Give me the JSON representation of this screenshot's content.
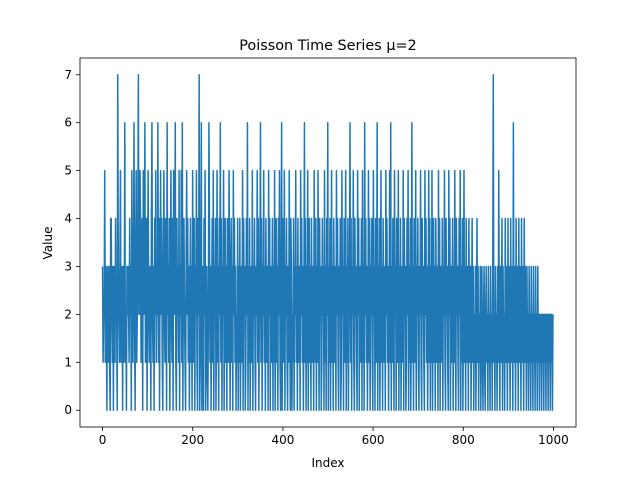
{
  "chart_data": {
    "type": "line",
    "title": "Poisson Time Series   μ=2",
    "xlabel": "Index",
    "ylabel": "Value",
    "xlim": [
      -50,
      1050
    ],
    "ylim": [
      -0.35,
      7.35
    ],
    "x_ticks": [
      0,
      200,
      400,
      600,
      800,
      1000
    ],
    "x_tick_labels": [
      "0",
      "200",
      "400",
      "600",
      "800",
      "1000"
    ],
    "y_ticks": [
      0,
      1,
      2,
      3,
      4,
      5,
      6,
      7
    ],
    "y_tick_labels": [
      "0",
      "1",
      "2",
      "3",
      "4",
      "5",
      "6",
      "7"
    ],
    "grid": false,
    "line_color": "#1f77b4",
    "series": [
      {
        "n_points": 1000,
        "x_start": 0,
        "x_end": 999,
        "values": [
          3,
          1,
          2,
          2,
          5,
          1,
          3,
          2,
          0,
          3,
          2,
          1,
          3,
          1,
          0,
          4,
          4,
          2,
          1,
          3,
          0,
          3,
          2,
          1,
          4,
          2,
          2,
          0,
          7,
          3,
          2,
          1,
          3,
          5,
          1,
          2,
          3,
          0,
          3,
          1,
          2,
          6,
          1,
          2,
          0,
          3,
          2,
          3,
          2,
          1,
          4,
          2,
          3,
          0,
          5,
          2,
          1,
          3,
          6,
          2,
          0,
          3,
          5,
          1,
          2,
          4,
          7,
          2,
          2,
          5,
          4,
          1,
          3,
          4,
          0,
          5,
          2,
          3,
          6,
          1,
          2,
          4,
          0,
          3,
          5,
          2,
          1,
          3,
          2,
          0,
          4,
          6,
          2,
          1,
          3,
          0,
          4,
          2,
          5,
          1,
          3,
          2,
          6,
          1,
          4,
          0,
          3,
          5,
          2,
          4,
          1,
          0,
          3,
          5,
          2,
          1,
          4,
          3,
          0,
          6,
          2,
          3,
          1,
          4,
          0,
          3,
          5,
          2,
          1,
          4,
          0,
          5,
          2,
          3,
          6,
          1,
          0,
          4,
          2,
          3,
          1,
          5,
          0,
          3,
          2,
          5,
          1,
          6,
          0,
          3,
          4,
          2,
          1,
          0,
          3,
          5,
          2,
          4,
          1,
          3,
          0,
          2,
          4,
          1,
          3,
          0,
          5,
          2,
          1,
          4,
          0,
          3,
          2,
          5,
          1,
          0,
          4,
          2,
          7,
          0,
          1,
          3,
          6,
          0,
          2,
          3,
          0,
          4,
          2,
          5,
          0,
          1,
          3,
          1,
          0,
          2,
          6,
          4,
          1,
          3,
          0,
          2,
          4,
          1,
          5,
          0,
          3,
          2,
          4,
          0,
          2,
          5,
          1,
          3,
          0,
          4,
          2,
          6,
          1,
          4,
          0,
          3,
          2,
          5,
          0,
          2,
          4,
          1,
          3,
          0,
          4,
          2,
          1,
          5,
          3,
          0,
          2,
          4,
          1,
          3,
          0,
          5,
          2,
          4,
          1,
          3,
          0,
          2,
          1,
          4,
          0,
          3,
          1,
          4,
          0,
          2,
          3,
          1,
          5,
          0,
          4,
          2,
          3,
          0,
          1,
          4,
          2,
          6,
          0,
          3,
          1,
          4,
          0,
          2,
          3,
          1,
          5,
          0,
          3,
          2,
          4,
          1,
          0,
          3,
          2,
          5,
          1,
          4,
          0,
          2,
          3,
          6,
          1,
          4,
          0,
          3,
          2,
          5,
          1,
          3,
          0,
          4,
          2,
          1,
          3,
          0,
          5,
          2,
          4,
          0,
          3,
          1,
          2,
          4,
          0,
          3,
          1,
          5,
          0,
          2,
          4,
          1,
          3,
          0,
          4,
          2,
          5,
          1,
          0,
          3,
          6,
          0,
          4,
          2,
          1,
          5,
          0,
          3,
          2,
          4,
          1,
          0,
          3,
          1,
          5,
          2,
          0,
          4,
          3,
          0,
          2,
          1,
          4,
          0,
          3,
          2,
          5,
          1,
          3,
          0,
          4,
          1,
          2,
          3,
          0,
          5,
          2,
          4,
          1,
          3,
          0,
          2,
          6,
          1,
          4,
          0,
          3,
          1,
          5,
          0,
          2,
          4,
          1,
          3,
          0,
          4,
          2,
          1,
          3,
          0,
          5,
          2,
          1,
          4,
          0,
          3,
          1,
          5,
          2,
          0,
          4,
          2,
          3,
          0,
          1,
          4,
          2,
          3,
          0,
          5,
          1,
          3,
          0,
          4,
          2,
          6,
          0,
          3,
          1,
          4,
          0,
          2,
          5,
          1,
          3,
          0,
          4,
          2,
          1,
          3,
          0,
          5,
          2,
          4,
          1,
          0,
          3,
          2,
          4,
          0,
          1,
          5,
          2,
          3,
          0,
          4,
          1,
          2,
          5,
          0,
          3,
          1,
          4,
          0,
          2,
          3,
          6,
          1,
          4,
          0,
          3,
          2,
          5,
          1,
          0,
          4,
          2,
          3,
          1,
          0,
          5,
          2,
          4,
          0,
          3,
          1,
          2,
          4,
          0,
          5,
          1,
          3,
          0,
          6,
          2,
          4,
          1,
          3,
          0,
          2,
          5,
          1,
          4,
          0,
          3,
          2,
          4,
          1,
          0,
          5,
          2,
          3,
          0,
          4,
          1,
          2,
          6,
          0,
          3,
          1,
          4,
          0,
          2,
          5,
          1,
          3,
          0,
          4,
          2,
          1,
          3,
          0,
          5,
          2,
          4,
          1,
          3,
          0,
          2,
          5,
          1,
          6,
          0,
          3,
          1,
          4,
          2,
          0,
          5,
          2,
          3,
          0,
          4,
          1,
          2,
          5,
          0,
          3,
          1,
          4,
          0,
          2,
          3,
          1,
          5,
          0,
          4,
          2,
          3,
          0,
          1,
          4,
          2,
          5,
          0,
          3,
          1,
          4,
          0,
          2,
          6,
          1,
          3,
          0,
          4,
          2,
          1,
          5,
          0,
          3,
          2,
          4,
          1,
          0,
          3,
          2,
          5,
          1,
          0,
          4,
          2,
          3,
          1,
          0,
          5,
          2,
          4,
          1,
          3,
          0,
          2,
          5,
          1,
          4,
          0,
          3,
          1,
          5,
          0,
          2,
          4,
          1,
          3,
          0,
          4,
          2,
          1,
          3,
          0,
          5,
          1,
          4,
          0,
          3,
          2,
          1,
          4,
          0,
          3,
          2,
          5,
          1,
          0,
          4,
          2,
          3,
          1,
          0,
          5,
          2,
          4,
          0,
          3,
          1,
          2,
          4,
          0,
          3,
          1,
          5,
          2,
          0,
          4,
          2,
          3,
          1,
          0,
          4,
          2,
          5,
          0,
          3,
          1,
          4,
          0,
          2,
          5,
          1,
          3,
          0,
          4,
          2,
          1,
          3,
          0,
          4,
          2,
          1,
          3,
          0,
          2,
          4,
          1,
          3,
          0,
          2,
          1,
          3,
          0,
          2,
          4,
          1,
          3,
          0,
          2,
          1,
          3,
          0,
          2,
          3,
          1,
          0,
          2,
          3,
          1,
          0,
          2,
          3,
          1,
          2,
          0,
          3,
          1,
          2,
          0,
          3,
          1,
          2,
          0,
          3,
          7,
          1,
          2,
          0,
          3,
          1,
          2,
          0,
          3,
          1,
          5,
          2,
          0,
          3,
          1,
          2,
          4,
          0,
          3,
          1,
          2,
          0,
          4,
          1,
          3,
          2,
          0,
          4,
          1,
          3,
          2,
          0,
          4,
          1,
          3,
          2,
          0,
          6,
          1,
          3,
          2,
          0,
          4,
          1,
          3,
          2,
          0,
          4,
          1,
          3,
          2,
          0,
          4,
          1,
          3,
          2,
          0,
          4,
          1,
          3,
          2,
          0,
          3,
          1,
          2,
          0,
          3,
          1,
          2,
          0,
          3,
          1,
          2,
          0,
          3,
          1,
          2,
          0,
          3,
          1,
          2,
          0,
          3,
          1,
          2,
          0,
          2,
          1,
          2,
          0,
          2,
          1,
          2,
          0,
          2,
          1,
          2,
          0,
          2,
          1,
          2,
          0,
          2,
          1,
          2,
          0,
          2,
          1,
          2,
          0,
          2
        ]
      }
    ]
  }
}
